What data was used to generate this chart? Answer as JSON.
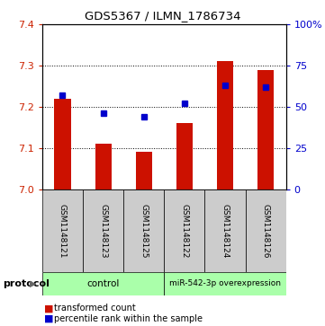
{
  "title": "GDS5367 / ILMN_1786734",
  "samples": [
    "GSM1148121",
    "GSM1148123",
    "GSM1148125",
    "GSM1148122",
    "GSM1148124",
    "GSM1148126"
  ],
  "bar_values": [
    7.22,
    7.11,
    7.09,
    7.16,
    7.31,
    7.29
  ],
  "percentile_values": [
    57,
    46,
    44,
    52,
    63,
    62
  ],
  "bar_color": "#cc1100",
  "dot_color": "#0000cc",
  "ylim_left": [
    7.0,
    7.4
  ],
  "ylim_right": [
    0,
    100
  ],
  "yticks_left": [
    7.0,
    7.1,
    7.2,
    7.3,
    7.4
  ],
  "yticks_right": [
    0,
    25,
    50,
    75,
    100
  ],
  "ytick_labels_right": [
    "0",
    "25",
    "50",
    "75",
    "100%"
  ],
  "group_control": [
    0,
    1,
    2
  ],
  "group_overexp": [
    3,
    4,
    5
  ],
  "group_labels": [
    "control",
    "miR-542-3p overexpression"
  ],
  "protocol_label": "protocol",
  "legend_bar": "transformed count",
  "legend_dot": "percentile rank within the sample",
  "bar_width": 0.4,
  "tick_color_left": "#cc2200",
  "tick_color_right": "#0000cc",
  "group_bg_color": "#cccccc",
  "protocol_bg_color": "#aaffaa"
}
